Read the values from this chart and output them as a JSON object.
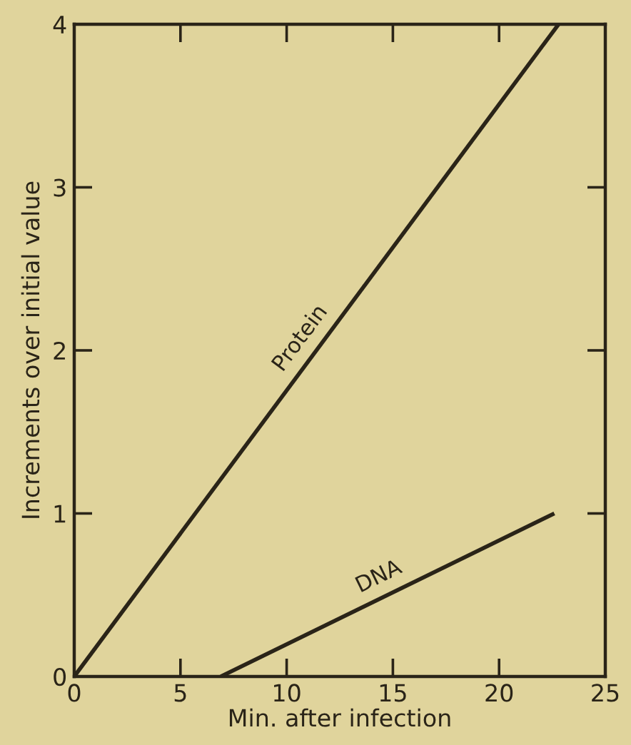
{
  "chart_data": {
    "type": "line",
    "xlabel": "Min. after infection",
    "ylabel": "Increments over initial value",
    "xlim": [
      0,
      25
    ],
    "xticks": [
      0,
      5,
      10,
      15,
      20,
      25
    ],
    "ylim": [
      0,
      4
    ],
    "yticks": [
      0,
      1,
      2,
      3,
      4
    ],
    "series": [
      {
        "name": "Protein",
        "color": "#2a2418",
        "x": [
          0,
          22.8
        ],
        "values": [
          0,
          4
        ]
      },
      {
        "name": "DNA",
        "color": "#2a2418",
        "x": [
          6.9,
          22.6
        ],
        "values": [
          0,
          1
        ]
      }
    ],
    "legend": false,
    "grid": false,
    "marker": "none",
    "line_style": "solid"
  }
}
